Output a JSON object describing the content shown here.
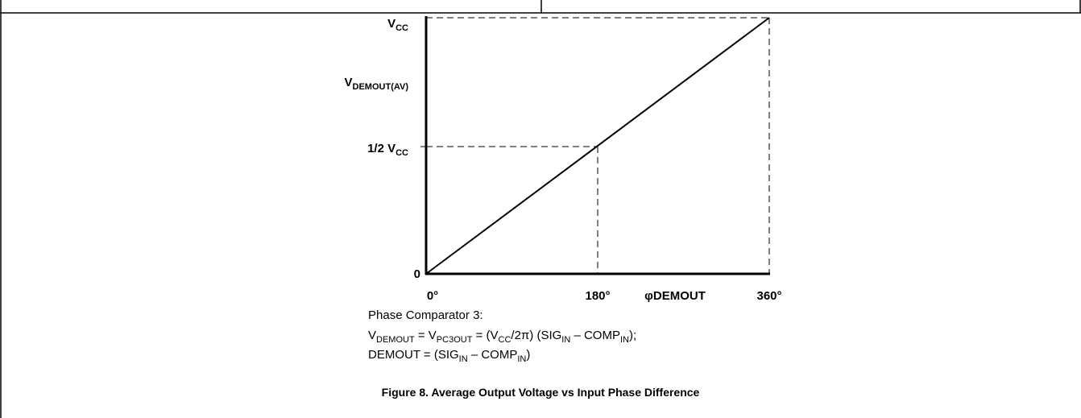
{
  "axis_labels": {
    "y": {
      "vcc": [
        "V",
        "CC"
      ],
      "demout": [
        "V",
        "DEMOUT(AV)"
      ],
      "half": [
        "1/2 V",
        "CC"
      ],
      "zero": "0"
    },
    "x": {
      "zero": "0°",
      "half": "180°",
      "name": "φDEMOUT",
      "full": "360°"
    }
  },
  "notes": {
    "heading": "Phase Comparator 3:",
    "formula1": [
      "V",
      "DEMOUT",
      " = V",
      "PC3OUT",
      " = (V",
      "CC",
      "/2π) (SIG",
      "IN",
      " – COMP",
      "IN",
      ");"
    ],
    "formula2": [
      "DEMOUT = (SIG",
      "IN",
      " – COMP",
      "IN",
      ")"
    ]
  },
  "caption": "Figure 8. Average Output Voltage vs Input Phase Difference"
}
